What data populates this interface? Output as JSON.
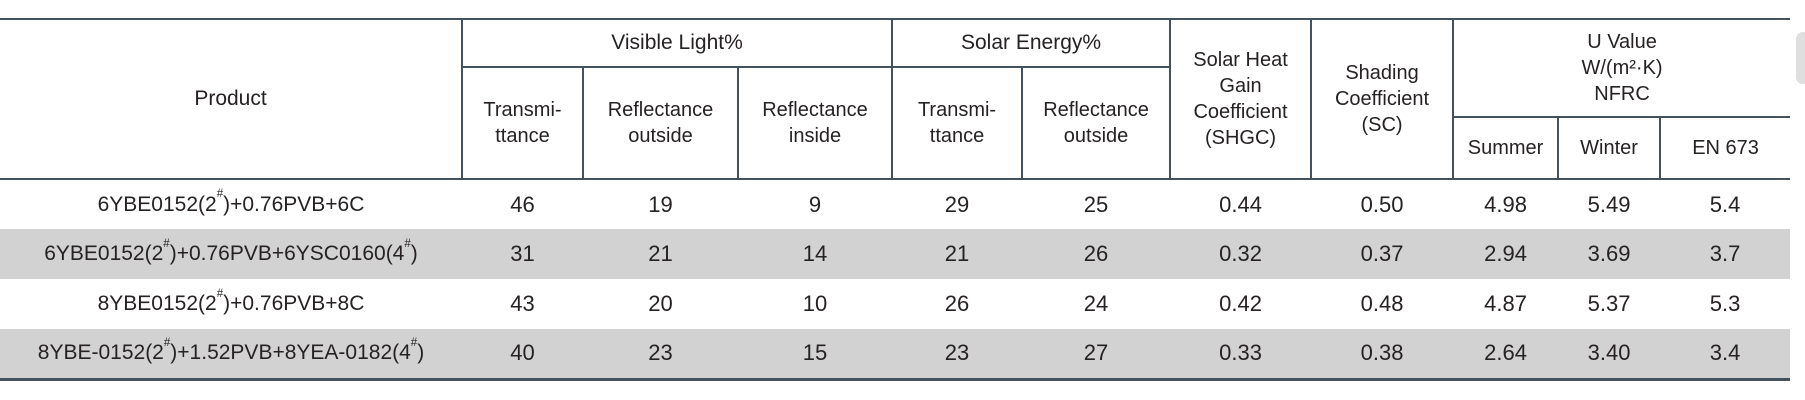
{
  "table": {
    "product_header": "Product",
    "groups": {
      "visible_light": "Visible Light%",
      "solar_energy": "Solar Energy%",
      "shgc": "Solar Heat\nGain\nCoefficient\n(SHGC)",
      "sc": "Shading\nCoefficient\n(SC)",
      "u_value": "U Value\nW/(m²·K)\nNFRC"
    },
    "subheaders": {
      "vl_transmittance": "Transmi-\nttance",
      "vl_reflectance_outside": "Reflectance\noutside",
      "vl_reflectance_inside": "Reflectance\ninside",
      "se_transmittance": "Transmi-\nttance",
      "se_reflectance_outside": "Reflectance\noutside",
      "u_summer": "Summer",
      "u_winter": "Winter",
      "u_en673": "EN 673"
    },
    "rows": [
      {
        "product": "6YBE0152(2#)+0.76PVB+6C",
        "values": [
          "46",
          "19",
          "9",
          "29",
          "25",
          "0.44",
          "0.50",
          "4.98",
          "5.49",
          "5.4"
        ]
      },
      {
        "product": "6YBE0152(2#)+0.76PVB+6YSC0160(4#)",
        "values": [
          "31",
          "21",
          "14",
          "21",
          "26",
          "0.32",
          "0.37",
          "2.94",
          "3.69",
          "3.7"
        ]
      },
      {
        "product": "8YBE0152(2#)+0.76PVB+8C",
        "values": [
          "43",
          "20",
          "10",
          "26",
          "24",
          "0.42",
          "0.48",
          "4.87",
          "5.37",
          "5.3"
        ]
      },
      {
        "product": "8YBE-0152(2#)+1.52PVB+8YEA-0182(4#)",
        "values": [
          "40",
          "23",
          "15",
          "23",
          "27",
          "0.33",
          "0.38",
          "2.64",
          "3.40",
          "3.4"
        ]
      }
    ],
    "colors": {
      "border": "#44525d",
      "row_stripe": "#d2d2d3",
      "text": "#262224",
      "scrollbar_thumb": "#dfdfdf"
    }
  }
}
